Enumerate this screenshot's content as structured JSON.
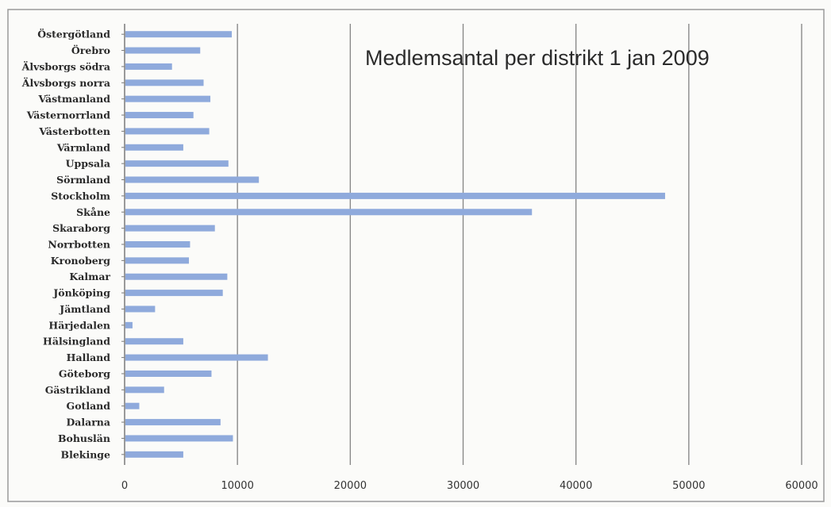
{
  "chart_data": {
    "type": "bar",
    "orientation": "horizontal",
    "title": "Medlemsantal per distrikt 1 jan 2009",
    "xlabel": "",
    "ylabel": "",
    "xlim": [
      0,
      60000
    ],
    "x_ticks": [
      0,
      10000,
      20000,
      30000,
      40000,
      50000,
      60000
    ],
    "x_tick_labels": [
      "0",
      "10000",
      "20000",
      "30000",
      "40000",
      "50000",
      "60000"
    ],
    "grid": "vertical major gridlines",
    "legend": "none",
    "bar_color": "#8faadc",
    "categories": [
      "Blekinge",
      "Bohuslän",
      "Dalarna",
      "Gotland",
      "Gästrikland",
      "Göteborg",
      "Halland",
      "Hälsingland",
      "Härjedalen",
      "Jämtland",
      "Jönköping",
      "Kalmar",
      "Kronoberg",
      "Norrbotten",
      "Skaraborg",
      "Skåne",
      "Stockholm",
      "Sörmland",
      "Uppsala",
      "Värmland",
      "Västerbotten",
      "Västernorrland",
      "Västmanland",
      "Älvsborgs norra",
      "Älvsborgs södra",
      "Örebro",
      "Östergötland"
    ],
    "values": [
      5200,
      9600,
      8500,
      1300,
      3500,
      7700,
      12700,
      5200,
      700,
      2700,
      8700,
      9100,
      5700,
      5800,
      8000,
      36100,
      47900,
      11900,
      9200,
      5200,
      7500,
      6100,
      7600,
      7000,
      4200,
      6700,
      9500
    ]
  }
}
